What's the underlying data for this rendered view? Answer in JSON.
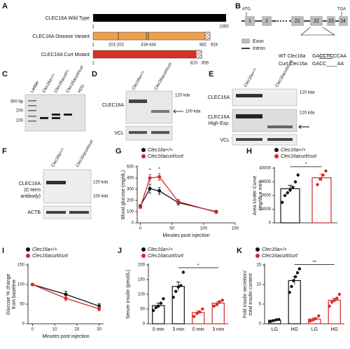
{
  "panel_a": {
    "label": "A",
    "rows": [
      {
        "name": "CLEC16A Wild Type",
        "labels": [
          "1",
          "1050"
        ]
      },
      {
        "name": "CLEC16A Disease Variant",
        "labels": [
          "1",
          "201-202",
          "419-434",
          "882",
          "924"
        ]
      },
      {
        "name": "CLEC16A Curt Mutant",
        "labels": [
          "1",
          "810",
          "859"
        ]
      }
    ]
  },
  "panel_b": {
    "label": "B",
    "atg": "ATG",
    "tga": "TGA",
    "exons": [
      "1",
      "2",
      "21",
      "22",
      "23",
      "24"
    ],
    "legend": [
      "Exon",
      "Intron"
    ],
    "wt_prefix": "WT Clec16a",
    "wt_seq": [
      "GA",
      "CCTC",
      "CCAA"
    ],
    "curt_prefix": "Curt Clec16a",
    "curt_seq": "GACC____AA"
  },
  "panel_c": {
    "label": "C",
    "lanes": [
      "Ladder",
      "Clec16a+/+",
      "Clec16acurt/+",
      "Clec16acurt/curt",
      "H2O"
    ],
    "markers": [
      "300 bp",
      "200",
      "100"
    ]
  },
  "panel_d": {
    "label": "D",
    "lanes": [
      "Clec16a+/+",
      "Clec16acurt/curt"
    ],
    "rows": [
      "CLEC16A",
      "VCL"
    ],
    "markers": [
      "120 kda",
      "100 kda"
    ]
  },
  "panel_e": {
    "label": "E",
    "lanes": [
      "Clec16a+/+",
      "Clec16acurt/curt"
    ],
    "rows": [
      "CLEC16A",
      "CLEC16A",
      "High Exp.",
      "VCL"
    ],
    "markers": [
      "120 kda",
      "120 kda"
    ]
  },
  "panel_f": {
    "label": "F",
    "lanes": [
      "Clec16a+/+",
      "Clec16acurt/curt"
    ],
    "rows": [
      "CLEC16A",
      "(C-term",
      "antibody)",
      "ACTB"
    ],
    "markers": [
      "120 kda",
      "100 kda"
    ]
  },
  "chart_data": [
    {
      "type": "line",
      "label": "G",
      "ylabel": [
        "Blood glucose (mg/dL)"
      ],
      "xlabel": "Minutes post injection",
      "x": [
        0,
        15,
        30,
        60,
        120
      ],
      "xlim": [
        -5,
        150
      ],
      "xticks": [
        0,
        50,
        100,
        150
      ],
      "ylim": [
        0,
        500
      ],
      "yticks": [
        0,
        100,
        200,
        300,
        400,
        500
      ],
      "series": [
        {
          "name": "Clec16a+/+",
          "color": "#111111",
          "values": [
            150,
            305,
            285,
            180,
            100
          ],
          "errors": [
            10,
            40,
            30,
            20,
            10
          ]
        },
        {
          "name": "Clec16acurt/curt",
          "color": "#d62728",
          "values": [
            140,
            400,
            410,
            190,
            95
          ],
          "errors": [
            10,
            30,
            30,
            20,
            10
          ]
        }
      ],
      "annotations": [
        {
          "text": "*",
          "x": 15
        },
        {
          "text": "*",
          "x": 30
        }
      ]
    },
    {
      "type": "bar",
      "label": "H",
      "ylabel": [
        "Area Under Curve",
        "(mg/dL x min)"
      ],
      "categories": [
        null,
        null
      ],
      "ylim": [
        0,
        40000
      ],
      "yticks": [
        0,
        10000,
        20000,
        30000,
        40000
      ],
      "series": [
        {
          "name": "Clec16a+/+",
          "color": "#111111",
          "values": [
            25000,
            null
          ],
          "errors": [
            2500,
            null
          ],
          "points": [
            [
              15000,
              20000,
              22000,
              24000,
              26000,
              30000,
              35000
            ],
            null
          ]
        },
        {
          "name": "Clec16acurt/curt",
          "color": "#d62728",
          "values": [
            null,
            33000
          ],
          "errors": [
            null,
            2500
          ],
          "points": [
            null,
            [
              28000,
              32000,
              35000,
              38000
            ]
          ]
        }
      ],
      "annotations": [
        {
          "text": "*"
        }
      ]
    },
    {
      "type": "line",
      "label": "I",
      "ylabel": [
        "Glucose % change",
        "from baseline"
      ],
      "xlabel": "Minutes post injection",
      "x": [
        0,
        15,
        30
      ],
      "xlim": [
        -2,
        32
      ],
      "xticks": [
        0,
        10,
        20,
        30
      ],
      "ylim": [
        0,
        150
      ],
      "yticks": [
        0,
        50,
        100,
        150
      ],
      "series": [
        {
          "name": "Clec16a+/+",
          "color": "#111111",
          "values": [
            100,
            75,
            45
          ],
          "errors": [
            0,
            8,
            6
          ]
        },
        {
          "name": "Clec16acurt/curt",
          "color": "#d62728",
          "values": [
            100,
            65,
            38
          ],
          "errors": [
            0,
            6,
            5
          ]
        }
      ],
      "annotations": []
    },
    {
      "type": "bar",
      "label": "J",
      "ylabel": [
        "Serum insulin (pmol/L)"
      ],
      "categories": [
        "0 min",
        "3 min",
        "0 min",
        "3 min"
      ],
      "ylim": [
        0,
        200
      ],
      "yticks": [
        0,
        50,
        100,
        150,
        200
      ],
      "series": [
        {
          "name": "Clec16a+/+",
          "color": "#111111",
          "values": [
            62,
            127,
            null,
            null
          ],
          "errors": [
            8,
            15,
            null,
            null
          ],
          "points": [
            [
              45,
              55,
              60,
              70,
              85
            ],
            [
              90,
              110,
              125,
              130,
              175
            ],
            null,
            null
          ]
        },
        {
          "name": "Clec16acurt/curt",
          "color": "#d62728",
          "values": [
            null,
            null,
            38,
            70
          ],
          "errors": [
            null,
            null,
            6,
            5
          ],
          "points": [
            null,
            null,
            [
              25,
              35,
              40,
              50
            ],
            [
              60,
              65,
              75,
              80
            ]
          ]
        }
      ],
      "annotations": [
        {
          "text": "*"
        }
      ]
    },
    {
      "type": "bar",
      "label": "K",
      "ylabel": [
        "Fold insulin secretion/",
        "total insulin content"
      ],
      "categories": [
        "LG",
        "HG",
        "LG",
        "HG"
      ],
      "ylim": [
        0,
        15
      ],
      "yticks": [
        0,
        5,
        10,
        15
      ],
      "series": [
        {
          "name": "Clec16a+/+",
          "color": "#111111",
          "values": [
            0.9,
            11,
            null,
            null
          ],
          "errors": [
            0.1,
            1,
            null,
            null
          ],
          "points": [
            [
              0.6,
              0.8,
              1,
              1.1
            ],
            [
              8,
              9.5,
              11,
              12,
              13,
              14
            ],
            null,
            null
          ]
        },
        {
          "name": "Clec16acurt/curt",
          "color": "#d62728",
          "values": [
            null,
            null,
            1.2,
            6
          ],
          "errors": [
            null,
            null,
            0.3,
            0.5
          ],
          "points": [
            null,
            null,
            [
              0.7,
              1,
              1.3,
              2
            ],
            [
              4.5,
              5.5,
              6,
              6.5,
              7.5
            ]
          ]
        }
      ],
      "annotations": [
        {
          "text": "**"
        }
      ]
    }
  ]
}
